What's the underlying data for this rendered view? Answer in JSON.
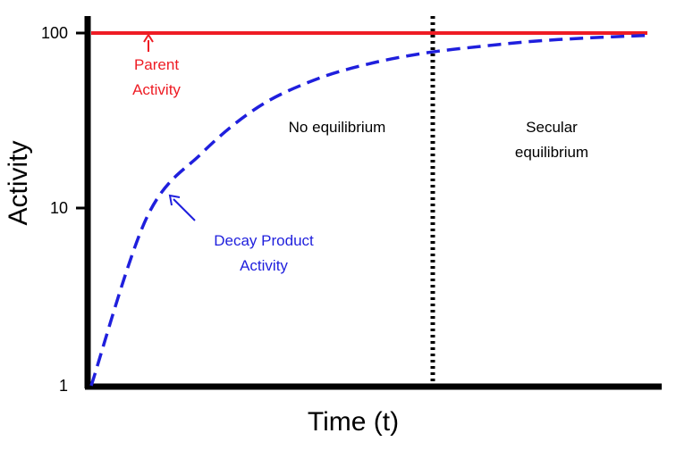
{
  "chart_data": {
    "type": "line",
    "title": "",
    "xlabel": "Time (t)",
    "ylabel": "Activity",
    "y_scale": "log",
    "ylim": [
      1,
      100
    ],
    "y_ticks": [
      "1",
      "10",
      "100"
    ],
    "grid": false,
    "series": [
      {
        "id": "parent",
        "color": "#ee1c24",
        "style": "solid",
        "values": [
          100,
          100,
          100,
          100,
          100,
          100,
          100,
          100,
          100,
          100,
          100
        ]
      },
      {
        "id": "decay_product",
        "color": "#1f1fdd",
        "style": "dashed",
        "values": [
          1,
          9,
          21,
          38,
          54,
          67,
          77,
          84,
          90,
          94,
          97
        ]
      }
    ],
    "annotations": {
      "parent_label_1": "Parent",
      "parent_label_2": "Activity",
      "product_label_1": "Decay Product",
      "product_label_2": "Activity",
      "region_left": "No equilibrium",
      "region_right_1": "Secular",
      "region_right_2": "equilibrium"
    }
  }
}
